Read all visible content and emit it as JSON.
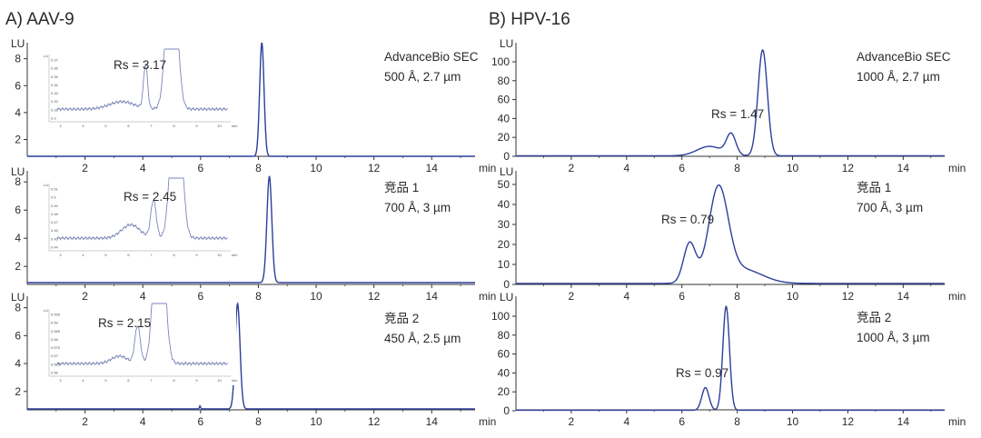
{
  "figure": {
    "sections": [
      {
        "id": "A",
        "title": "A) AAV-9"
      },
      {
        "id": "B",
        "title": "B) HPV-16"
      }
    ],
    "colors": {
      "trace": "#2d3e9a",
      "inset_trace": "#7a86b8",
      "axis": "#333333",
      "text": "#2a2a2a"
    }
  },
  "chart_data": [
    {
      "id": "A1",
      "section": "A",
      "type": "line",
      "ylabel": "LU",
      "xlabel": "min",
      "xlim": [
        0,
        15.5
      ],
      "ylim": [
        0,
        9
      ],
      "xticks": [
        2,
        4,
        6,
        8,
        10,
        12,
        14
      ],
      "yticks": [
        2,
        4,
        6,
        8
      ],
      "column": "AdvanceBio SEC",
      "spec": "500 Å, 2.7 µm",
      "baseline": 0.75,
      "peaks": [
        {
          "rt": 8.12,
          "height": 8.45,
          "sigma": 0.075
        }
      ],
      "inset": {
        "label": "Rs = 3.17",
        "xlim": [
          2.5,
          10.5
        ],
        "xticks": [
          3,
          4,
          5,
          6,
          7,
          8,
          9,
          10
        ],
        "unit": "min",
        "yticks": [
          "0.37",
          "0.36",
          "0.35",
          "0.34",
          "0.33",
          "0.32",
          "0.31",
          "0.3"
        ],
        "ylabel": "LU",
        "baseline": 0.12,
        "peaks": [
          {
            "rt": 5.7,
            "height": 0.1,
            "sigma": 0.55
          },
          {
            "rt": 6.75,
            "height": 0.58,
            "sigma": 0.09
          },
          {
            "rt": 7.9,
            "height": 2.4,
            "sigma": 0.22
          }
        ]
      }
    },
    {
      "id": "A2",
      "section": "A",
      "type": "line",
      "ylabel": "LU",
      "xlabel": "min",
      "xlim": [
        0,
        15.5
      ],
      "ylim": [
        0,
        9
      ],
      "xticks": [
        2,
        4,
        6,
        8,
        10,
        12,
        14
      ],
      "yticks": [
        2,
        4,
        6,
        8
      ],
      "column": "竞品 1",
      "spec": "700 Å, 3 µm",
      "baseline": 0.85,
      "peaks": [
        {
          "rt": 8.38,
          "height": 7.55,
          "sigma": 0.085
        }
      ],
      "inset": {
        "label": "Rs = 2.45",
        "xlim": [
          2.5,
          10.5
        ],
        "xticks": [
          3,
          4,
          5,
          6,
          7,
          8,
          9,
          10
        ],
        "unit": "min",
        "yticks": [
          "0.51",
          "0.5",
          "0.49",
          "0.48",
          "0.47",
          "0.46",
          "0.45",
          "0.44"
        ],
        "ylabel": "LU",
        "baseline": 0.12,
        "peaks": [
          {
            "rt": 6.1,
            "height": 0.18,
            "sigma": 0.4
          },
          {
            "rt": 7.1,
            "height": 0.5,
            "sigma": 0.12
          },
          {
            "rt": 8.1,
            "height": 2.4,
            "sigma": 0.22
          }
        ]
      }
    },
    {
      "id": "A3",
      "section": "A",
      "type": "line",
      "ylabel": "LU",
      "xlabel": "min",
      "xlim": [
        0,
        15.5
      ],
      "ylim": [
        0,
        9
      ],
      "xticks": [
        2,
        4,
        6,
        8,
        10,
        12,
        14
      ],
      "yticks": [
        2,
        4,
        6,
        8
      ],
      "column": "竞品 2",
      "spec": "450 Å, 2.5 µm",
      "baseline": 0.75,
      "peaks": [
        {
          "rt": 5.98,
          "height": 0.22,
          "sigma": 0.02
        },
        {
          "rt": 7.28,
          "height": 7.55,
          "sigma": 0.085
        }
      ],
      "inset": {
        "label": "Rs = 2.15",
        "xlim": [
          2.5,
          10.5
        ],
        "xticks": [
          3,
          4,
          5,
          6,
          7,
          8,
          9,
          10
        ],
        "unit": "min",
        "yticks": [
          "0.595",
          "0.59",
          "0.585",
          "0.58",
          "0.575",
          "0.57",
          "0.565",
          "0.56"
        ],
        "ylabel": "LU",
        "baseline": 0.12,
        "peaks": [
          {
            "rt": 5.6,
            "height": 0.1,
            "sigma": 0.35
          },
          {
            "rt": 6.4,
            "height": 0.5,
            "sigma": 0.12
          },
          {
            "rt": 7.35,
            "height": 2.4,
            "sigma": 0.22
          }
        ]
      }
    },
    {
      "id": "B1",
      "section": "B",
      "type": "line",
      "ylabel": "LU",
      "xlabel": "min",
      "xlim": [
        0,
        15.5
      ],
      "ylim": [
        0,
        115
      ],
      "xticks": [
        2,
        4,
        6,
        8,
        10,
        12,
        14
      ],
      "yticks": [
        0,
        20,
        40,
        60,
        80,
        100
      ],
      "column": "AdvanceBio SEC",
      "spec": "1000 Å, 2.7 µm",
      "rs_label": "Rs = 1.47",
      "baseline": 0.5,
      "peaks": [
        {
          "rt": 7.0,
          "height": 10,
          "sigma": 0.45
        },
        {
          "rt": 7.78,
          "height": 22,
          "sigma": 0.17
        },
        {
          "rt": 8.92,
          "height": 112,
          "sigma": 0.17
        }
      ]
    },
    {
      "id": "B2",
      "section": "B",
      "type": "line",
      "ylabel": "LU",
      "xlabel": "min",
      "xlim": [
        0,
        15.5
      ],
      "ylim": [
        0,
        55
      ],
      "xticks": [
        2,
        4,
        6,
        8,
        10,
        12,
        14
      ],
      "yticks": [
        0,
        10,
        20,
        30,
        40,
        50
      ],
      "column": "竞品 1",
      "spec": "700 Å, 3 µm",
      "rs_label": "Rs = 0.79",
      "baseline": 0.5,
      "peaks": [
        {
          "rt": 6.28,
          "height": 20,
          "sigma": 0.22
        },
        {
          "rt": 7.32,
          "height": 46,
          "sigma": 0.35
        },
        {
          "rt": 8.2,
          "height": 7,
          "sigma": 0.7
        }
      ]
    },
    {
      "id": "B3",
      "section": "B",
      "type": "line",
      "ylabel": "LU",
      "xlabel": "min",
      "xlim": [
        0,
        15.5
      ],
      "ylim": [
        0,
        115
      ],
      "xticks": [
        2,
        4,
        6,
        8,
        10,
        12,
        14
      ],
      "yticks": [
        0,
        20,
        40,
        60,
        80,
        100
      ],
      "column": "竞品 2",
      "spec": "1000 Å, 3 µm",
      "rs_label": "Rs = 0.97",
      "baseline": 0.5,
      "peaks": [
        {
          "rt": 6.85,
          "height": 24,
          "sigma": 0.13
        },
        {
          "rt": 7.6,
          "height": 110,
          "sigma": 0.12
        }
      ]
    }
  ]
}
